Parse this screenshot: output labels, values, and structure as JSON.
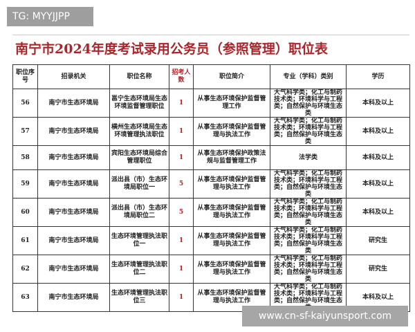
{
  "watermark_top": "TG: MYYJJPP",
  "watermark_bottom": "www.cn-sf-kaiyunsport.com",
  "title": "南宁市2024年度考试录用公务员（参照管理）职位表",
  "headers": [
    "职位序号",
    "招录机关",
    "职位名称",
    "招考人数",
    "职位简介",
    "专业（学科）类别",
    "学历"
  ],
  "rows": [
    {
      "no": "56",
      "org": "南宁市生态环境局",
      "pos": "邕宁生态环境局生态环境监督管理职位",
      "num": "1",
      "desc": "从事生态环境保护监督管理工作",
      "major": "大气科学类；化工与制药技术类；环境科学与工程类；自然保护与环境生态类",
      "edu": "本科及以上"
    },
    {
      "no": "57",
      "org": "南宁市生态环境局",
      "pos": "横州生态环境局生态环境管理执法职位",
      "num": "1",
      "desc": "从事生态环境保护监督管理与执法工作",
      "major": "大气科学类；化工与制药技术类；环境科学与工程类；自然保护与环境生态类",
      "edu": "本科及以上"
    },
    {
      "no": "58",
      "org": "南宁市生态环境局",
      "pos": "宾阳生态环境局综合管理职位",
      "num": "1",
      "desc": "从事生态环境保护政策法规与监督管理工作",
      "major": "法学类",
      "edu": "本科及以上"
    },
    {
      "no": "59",
      "org": "南宁市生态环境局",
      "pos": "派出县（市）生态环境局职位一",
      "num": "5",
      "desc": "从事生态环境保护监督管理与执法工作",
      "major": "大气科学类；化工与制药技术类；环境科学与工程类；自然保护与环境生态类",
      "edu": "本科及以上"
    },
    {
      "no": "60",
      "org": "南宁市生态环境局",
      "pos": "派出县（市）生态环境局职位二",
      "num": "5",
      "desc": "从事生态环境保护监督管理与执法工作",
      "major": "大气科学类；化工与制药技术类；环境科学与工程类；自然保护与环境生态类",
      "edu": "本科及以上"
    },
    {
      "no": "61",
      "org": "南宁市生态环境局",
      "pos": "生态环境管理执法职位一",
      "num": "1",
      "desc": "从事生态环境保护监督管理与执法工作",
      "major": "大气科学类；化工与制药技术类；环境科学与工程类；自然保护与环境生态类",
      "edu": "研究生"
    },
    {
      "no": "62",
      "org": "南宁市生态环境局",
      "pos": "生态环境管理执法职位二",
      "num": "1",
      "desc": "从事生态环境保护监督管理与执法工作",
      "major": "大气科学类；化工与制药技术类；环境科学与工程类；自然保护与环境生态类",
      "edu": "研究生"
    },
    {
      "no": "63",
      "org": "南宁市生态环境局",
      "pos": "生态环境管理执法职位三",
      "num": "1",
      "desc": "从事生态环境保护监督管理与执法工作",
      "major": "大气科学类；化工与制药技术类；环境科学与工程类；自然保护与环境生态类",
      "edu": "本科及以上"
    }
  ]
}
